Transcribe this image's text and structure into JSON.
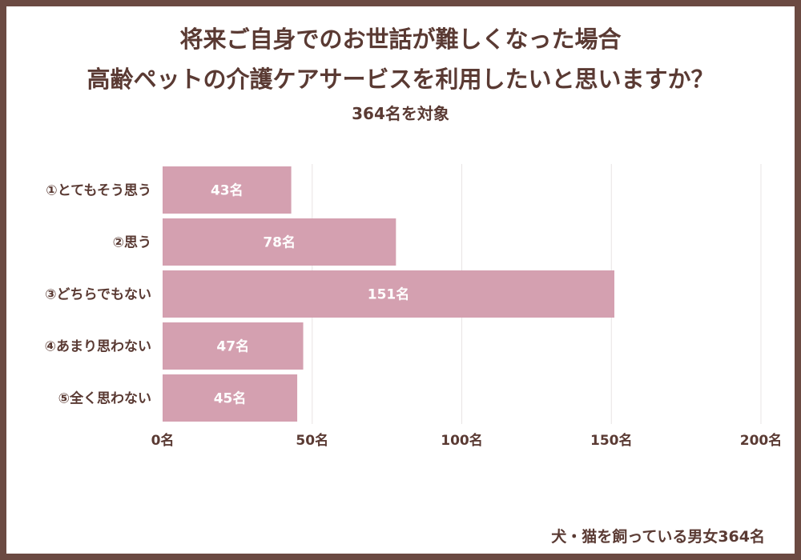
{
  "chart_data": {
    "type": "bar",
    "orientation": "horizontal",
    "title": "将来ご自身でのお世話が難しくなった場合",
    "title_line2": "高齢ペットの介護ケアサービスを利用したいと思いますか？",
    "subtitle": "364名を対象",
    "categories": [
      "①とてもそう思う",
      "②思う",
      "③どちらでもない",
      "④あまり思わない",
      "⑤全く思わない"
    ],
    "values": [
      43,
      78,
      151,
      47,
      45
    ],
    "value_labels": [
      "43名",
      "78名",
      "151名",
      "47名",
      "45名"
    ],
    "xlim": [
      0,
      200
    ],
    "ticks": [
      0,
      50,
      100,
      150,
      200
    ],
    "tick_labels": [
      "0名",
      "50名",
      "100名",
      "150名",
      "200名"
    ],
    "xlabel": "",
    "ylabel": "",
    "grid": true,
    "legend": "none"
  },
  "footer": "犬・猫を飼っている男女364名",
  "colors": {
    "bar": "#d4a0b0",
    "text": "#5a3a33",
    "frame": "#6b4a42",
    "grid": "#e8e4e4"
  }
}
